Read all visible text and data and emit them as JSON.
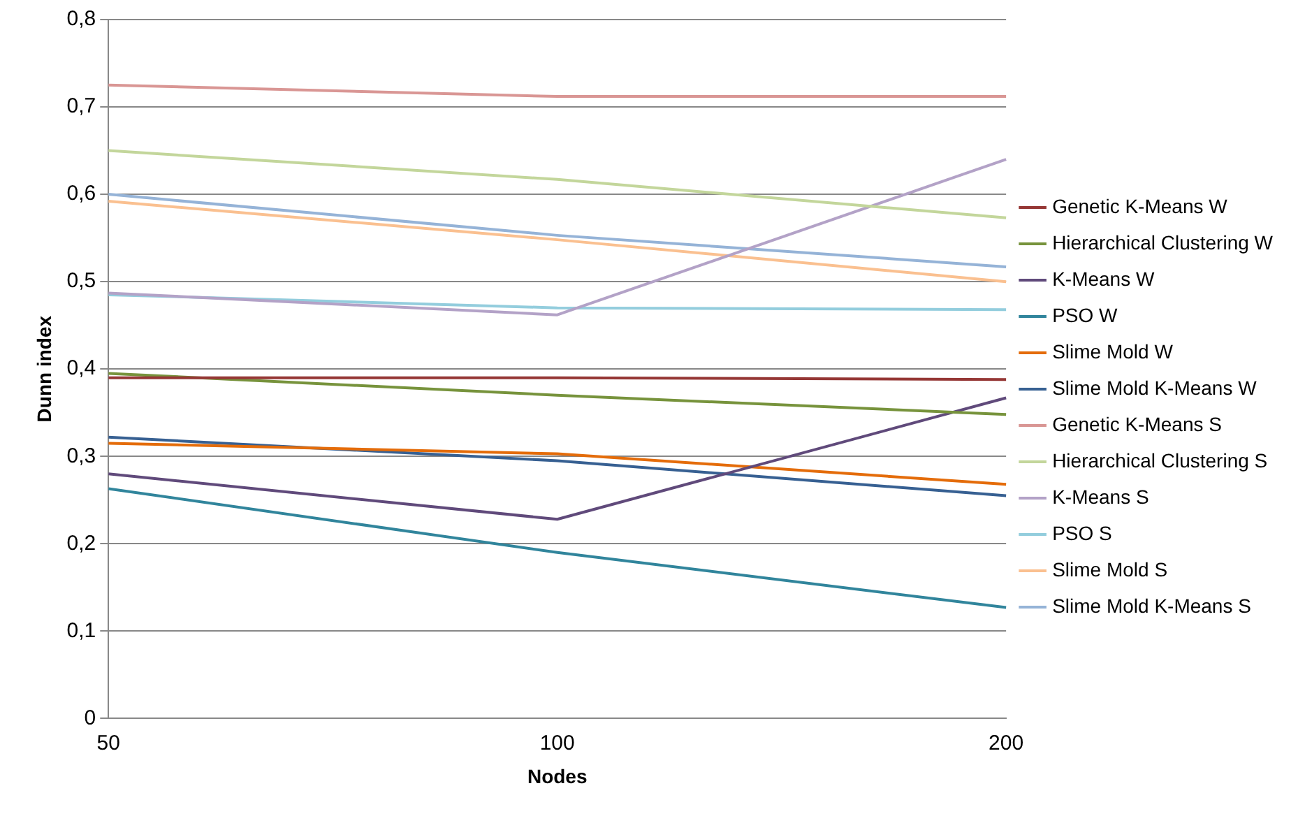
{
  "chart_data": {
    "type": "line",
    "xlabel": "Nodes",
    "ylabel": "Dunn index",
    "categories": [
      "50",
      "100",
      "200"
    ],
    "ylim": [
      0,
      0.8
    ],
    "yticks": [
      {
        "value": 0,
        "label": "0"
      },
      {
        "value": 0.1,
        "label": "0,1"
      },
      {
        "value": 0.2,
        "label": "0,2"
      },
      {
        "value": 0.3,
        "label": "0,3"
      },
      {
        "value": 0.4,
        "label": "0,4"
      },
      {
        "value": 0.5,
        "label": "0,5"
      },
      {
        "value": 0.6,
        "label": "0,6"
      },
      {
        "value": 0.7,
        "label": "0,7"
      },
      {
        "value": 0.8,
        "label": "0,8"
      }
    ],
    "grid": "y",
    "legend": "right",
    "marker": "none",
    "line_style": "solid",
    "series": [
      {
        "name": "Genetic K-Means W",
        "color": "#953735",
        "values": [
          0.39,
          0.39,
          0.388
        ]
      },
      {
        "name": "Hierarchical Clustering W",
        "color": "#77933c",
        "values": [
          0.395,
          0.37,
          0.348
        ]
      },
      {
        "name": "K-Means W",
        "color": "#604a7b",
        "values": [
          0.28,
          0.228,
          0.367
        ]
      },
      {
        "name": "PSO W",
        "color": "#31859c",
        "values": [
          0.263,
          0.19,
          0.127
        ]
      },
      {
        "name": "Slime Mold W",
        "color": "#e46c0a",
        "values": [
          0.315,
          0.303,
          0.268
        ]
      },
      {
        "name": "Slime Mold K-Means W",
        "color": "#376092",
        "values": [
          0.322,
          0.295,
          0.255
        ]
      },
      {
        "name": "Genetic K-Means S",
        "color": "#d99694",
        "values": [
          0.725,
          0.712,
          0.712
        ]
      },
      {
        "name": "Hierarchical Clustering S",
        "color": "#c3d69b",
        "values": [
          0.65,
          0.617,
          0.573
        ]
      },
      {
        "name": "K-Means S",
        "color": "#b3a2c7",
        "values": [
          0.487,
          0.462,
          0.64
        ]
      },
      {
        "name": "PSO S",
        "color": "#93cddd",
        "values": [
          0.485,
          0.47,
          0.468
        ]
      },
      {
        "name": "Slime Mold S",
        "color": "#fac090",
        "values": [
          0.592,
          0.548,
          0.5
        ]
      },
      {
        "name": "Slime Mold K-Means S",
        "color": "#95b3d7",
        "values": [
          0.6,
          0.553,
          0.517
        ]
      }
    ]
  }
}
